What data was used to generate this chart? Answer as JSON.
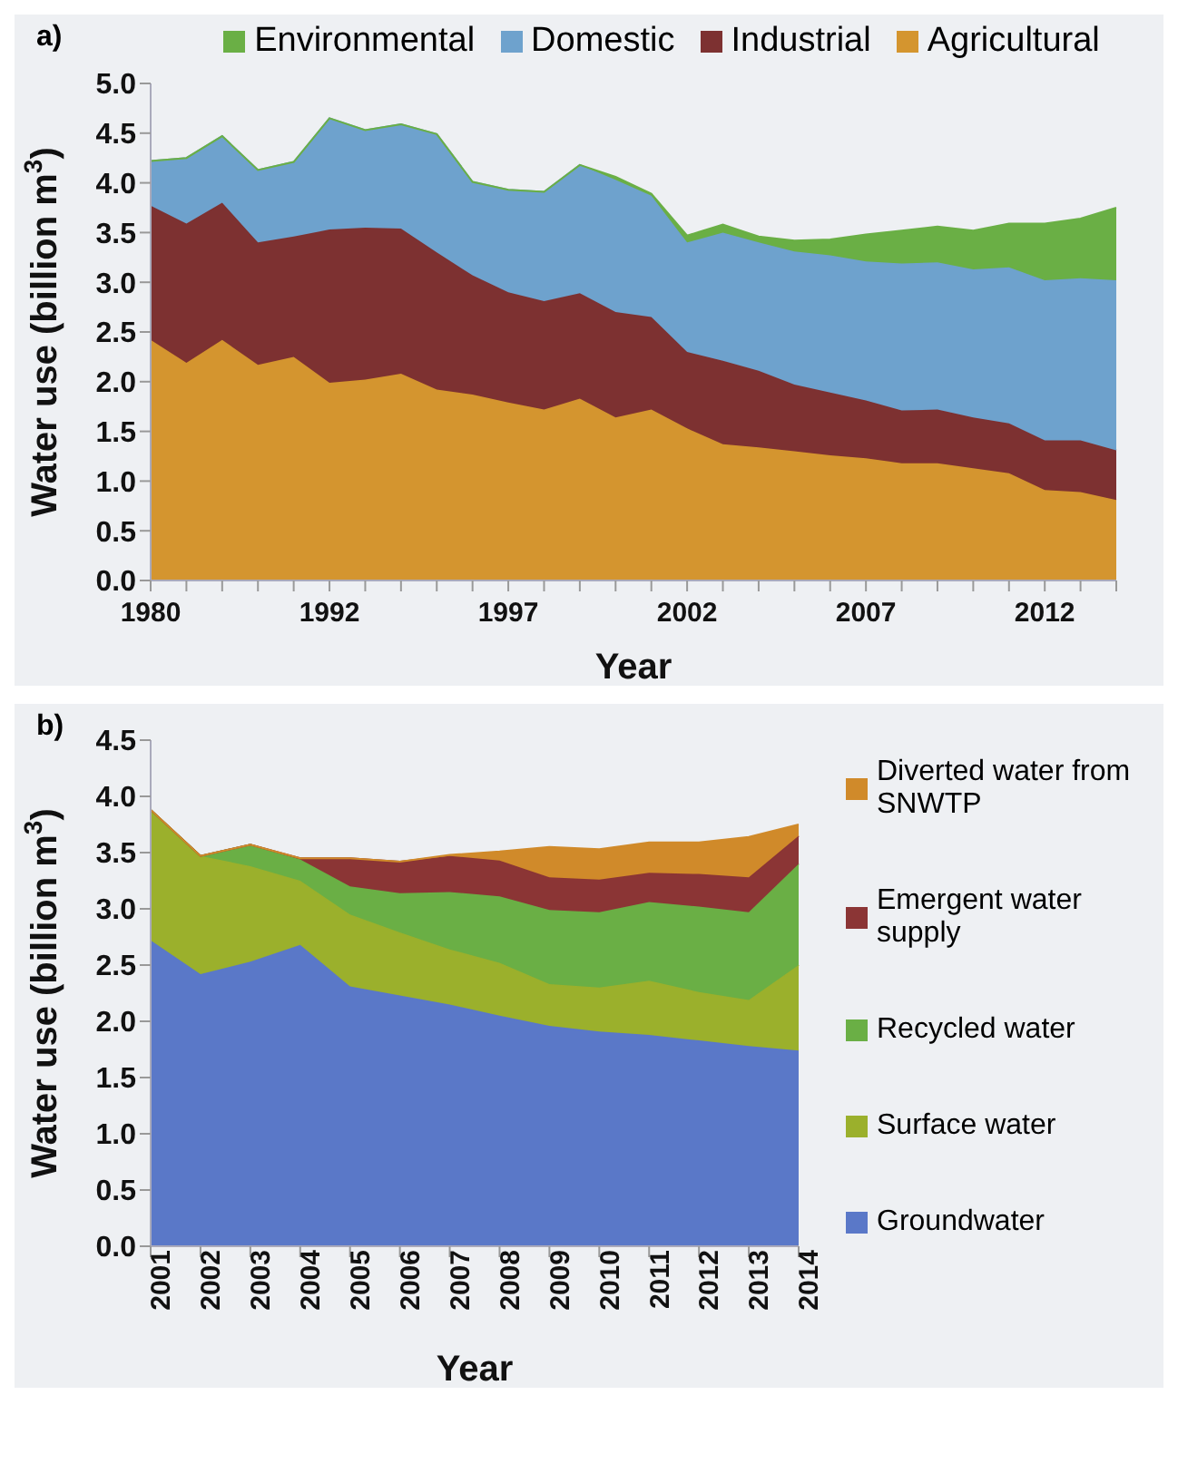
{
  "chart_data": [
    {
      "type": "area",
      "title": "a)",
      "xlabel": "Year",
      "ylabel": "Water use (billion m$^{3}$)",
      "stacked": true,
      "legend": "top",
      "grid": false,
      "categories": [
        "1980",
        null,
        null,
        null,
        null,
        "1992",
        null,
        null,
        null,
        null,
        "1997",
        null,
        null,
        null,
        null,
        "2002",
        null,
        null,
        null,
        null,
        "2007",
        null,
        null,
        null,
        null,
        "2012",
        null,
        null
      ],
      "ylim": [
        0,
        5
      ],
      "yticks": [
        {
          "value": 0,
          "label": "0.0"
        },
        {
          "value": 0.5,
          "label": "0.5"
        },
        {
          "value": 1,
          "label": "1.0"
        },
        {
          "value": 1.5,
          "label": "1.5"
        },
        {
          "value": 2,
          "label": "2.0"
        },
        {
          "value": 2.5,
          "label": "2.5"
        },
        {
          "value": 3,
          "label": "3.0"
        },
        {
          "value": 3.5,
          "label": "3.5"
        },
        {
          "value": 4,
          "label": "4.0"
        },
        {
          "value": 4.5,
          "label": "4.5"
        },
        {
          "value": 5,
          "label": "5.0"
        }
      ],
      "series": [
        {
          "name": "Agricultural",
          "color": "#d4952f",
          "values": [
            2.42,
            2.19,
            2.42,
            2.17,
            2.25,
            1.99,
            2.02,
            2.08,
            1.92,
            1.87,
            1.79,
            1.72,
            1.83,
            1.64,
            1.72,
            1.53,
            1.37,
            1.34,
            1.3,
            1.26,
            1.23,
            1.18,
            1.18,
            1.13,
            1.08,
            0.91,
            0.89,
            0.81
          ]
        },
        {
          "name": "Industrial",
          "color": "#7d3131",
          "values": [
            1.35,
            1.4,
            1.38,
            1.23,
            1.21,
            1.54,
            1.53,
            1.46,
            1.38,
            1.2,
            1.11,
            1.09,
            1.06,
            1.06,
            0.93,
            0.77,
            0.84,
            0.77,
            0.67,
            0.63,
            0.58,
            0.53,
            0.54,
            0.51,
            0.5,
            0.5,
            0.52,
            0.5
          ]
        },
        {
          "name": "Domestic",
          "color": "#6ea2cd",
          "values": [
            0.45,
            0.66,
            0.67,
            0.73,
            0.75,
            1.12,
            0.98,
            1.05,
            1.19,
            0.94,
            1.03,
            1.1,
            1.29,
            1.33,
            1.22,
            1.1,
            1.29,
            1.29,
            1.34,
            1.38,
            1.4,
            1.48,
            1.48,
            1.49,
            1.57,
            1.61,
            1.63,
            1.71
          ]
        },
        {
          "name": "Environmental",
          "color": "#6aaf45",
          "values": [
            0,
            0,
            0,
            0,
            0,
            0,
            0,
            0,
            0,
            0,
            0,
            0,
            0,
            0.03,
            0.02,
            0.07,
            0.08,
            0.06,
            0.11,
            0.16,
            0.27,
            0.33,
            0.36,
            0.39,
            0.44,
            0.57,
            0.6,
            0.73
          ]
        }
      ]
    },
    {
      "type": "area",
      "title": "b)",
      "xlabel": "Year",
      "ylabel": "Water use (billion m$^{3}$)",
      "stacked": true,
      "legend": "right",
      "grid": false,
      "categories": [
        "2001",
        "2002",
        "2003",
        "2004",
        "2005",
        "2006",
        "2007",
        "2008",
        "2009",
        "2010",
        "2011",
        "2012",
        "2013",
        "2014"
      ],
      "ylim": [
        0,
        4.5
      ],
      "yticks": [
        {
          "value": 0,
          "label": "0.0"
        },
        {
          "value": 0.5,
          "label": "0.5"
        },
        {
          "value": 1,
          "label": "1.0"
        },
        {
          "value": 1.5,
          "label": "1.5"
        },
        {
          "value": 2,
          "label": "2.0"
        },
        {
          "value": 2.5,
          "label": "2.5"
        },
        {
          "value": 3,
          "label": "3.0"
        },
        {
          "value": 3.5,
          "label": "3.5"
        },
        {
          "value": 4,
          "label": "4.0"
        },
        {
          "value": 4.5,
          "label": "4.5"
        }
      ],
      "series": [
        {
          "name": "Groundwater",
          "color": "#5a78c8",
          "values": [
            2.72,
            2.42,
            2.53,
            2.68,
            2.31,
            2.23,
            2.15,
            2.05,
            1.96,
            1.91,
            1.88,
            1.83,
            1.78,
            1.74
          ]
        },
        {
          "name": "Surface water",
          "color": "#9bb02c",
          "values": [
            1.16,
            1.05,
            0.85,
            0.57,
            0.64,
            0.56,
            0.49,
            0.47,
            0.37,
            0.39,
            0.48,
            0.43,
            0.41,
            0.76
          ]
        },
        {
          "name": "Recycled water",
          "color": "#6aaf45",
          "values": [
            0,
            0,
            0.19,
            0.19,
            0.25,
            0.35,
            0.51,
            0.59,
            0.66,
            0.67,
            0.7,
            0.76,
            0.78,
            0.9
          ]
        },
        {
          "name": "Emergent water supply",
          "color": "#8b3535",
          "values": [
            0,
            0,
            0,
            0.01,
            0.25,
            0.28,
            0.32,
            0.32,
            0.29,
            0.29,
            0.26,
            0.29,
            0.31,
            0.25
          ]
        },
        {
          "name": "Diverted water from SNWTP",
          "color": "#d08a2a",
          "values": [
            0,
            0,
            0,
            0,
            0,
            0,
            0.01,
            0.08,
            0.27,
            0.27,
            0.27,
            0.28,
            0.36,
            0.1
          ]
        }
      ]
    }
  ]
}
